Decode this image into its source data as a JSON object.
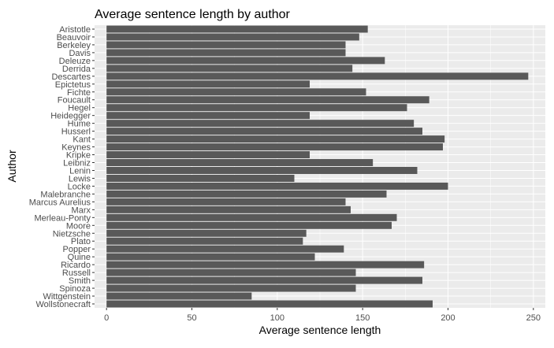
{
  "chart_data": {
    "type": "bar",
    "orientation": "horizontal",
    "title": "Average sentence length by author",
    "xlabel": "Average sentence length",
    "ylabel": "Author",
    "xlim": [
      -7,
      257
    ],
    "xticks": [
      0,
      50,
      100,
      150,
      200,
      250
    ],
    "grid": true,
    "colors": {
      "panel": "#ebebeb",
      "grid": "#ffffff",
      "bar": "#595959"
    },
    "categories": [
      "Wollstonecraft",
      "Wittgenstein",
      "Spinoza",
      "Smith",
      "Russell",
      "Ricardo",
      "Quine",
      "Popper",
      "Plato",
      "Nietzsche",
      "Moore",
      "Merleau-Ponty",
      "Marx",
      "Marcus Aurelius",
      "Malebranche",
      "Locke",
      "Lewis",
      "Lenin",
      "Leibniz",
      "Kripke",
      "Keynes",
      "Kant",
      "Husserl",
      "Hume",
      "Heidegger",
      "Hegel",
      "Foucault",
      "Fichte",
      "Epictetus",
      "Descartes",
      "Derrida",
      "Deleuze",
      "Davis",
      "Berkeley",
      "Beauvoir",
      "Aristotle"
    ],
    "values": [
      191,
      85,
      146,
      185,
      146,
      186,
      122,
      139,
      115,
      117,
      167,
      170,
      143,
      140,
      164,
      200,
      110,
      182,
      156,
      119,
      197,
      198,
      185,
      180,
      119,
      176,
      189,
      152,
      119,
      247,
      144,
      163,
      140,
      140,
      148,
      153
    ]
  }
}
